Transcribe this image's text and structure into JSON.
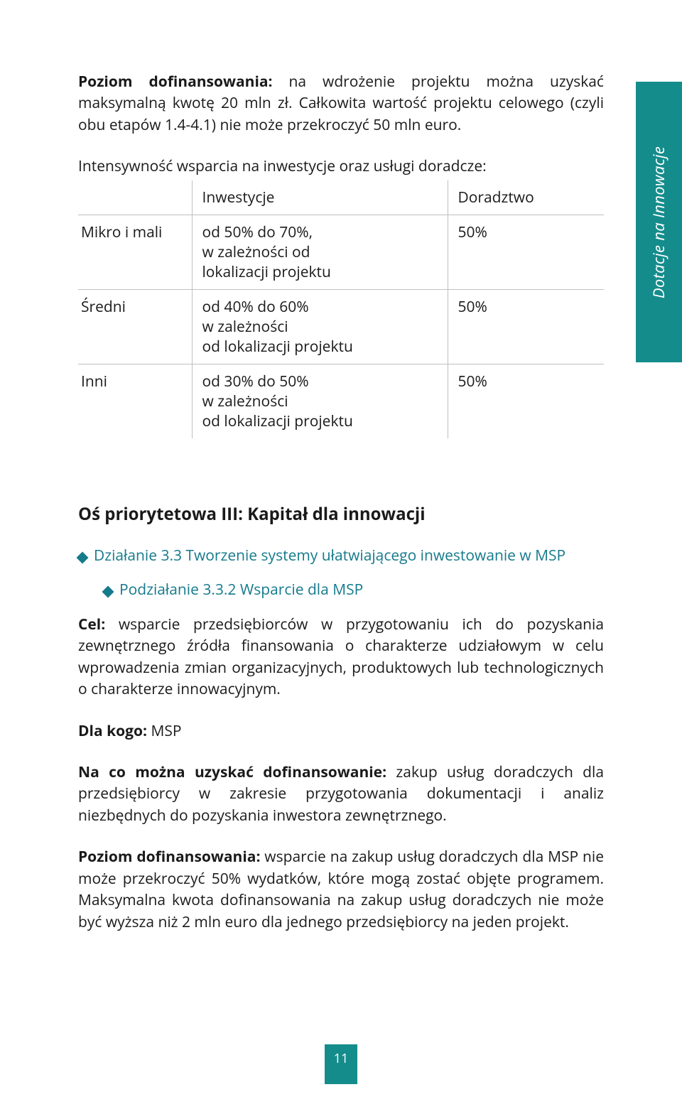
{
  "colors": {
    "teal": "#158c8c",
    "link": "#157a8c",
    "text": "#1a1a1a",
    "border": "#bfbfbf"
  },
  "sideTab": "Dotacje na Innowacje",
  "intro": {
    "boldLead": "Poziom dofinansowania:",
    "rest": " na wdrożenie projektu można uzyskać maksymalną kwotę 20 mln zł. Całkowita wartość projektu celowego (czyli obu etapów 1.4-4.1) nie może przekroczyć 50 mln euro."
  },
  "tableIntro": "Intensywność wsparcia na inwestycje oraz usługi doradcze:",
  "table": {
    "header": {
      "c1": "",
      "c2": "Inwestycje",
      "c3": "Doradztwo"
    },
    "rows": [
      {
        "c1": "Mikro i mali",
        "c2": "od 50% do 70%,\nw zależności od\nlokalizacji projektu",
        "c3": "50%"
      },
      {
        "c1": "Średni",
        "c2": "od 40% do 60%\nw zależności\nod lokalizacji projektu",
        "c3": "50%"
      },
      {
        "c1": "Inni",
        "c2": "od 30% do 50%\nw zależności\nod lokalizacji projektu",
        "c3": "50%"
      }
    ]
  },
  "sectionTitle": "Oś priorytetowa III: Kapitał dla innowacji",
  "bullet1": "Działanie 3.3 Tworzenie systemy ułatwiającego inwestowanie w MSP",
  "bullet2": "Podziałanie 3.3.2 Wsparcie dla MSP",
  "p_cel": {
    "bold": "Cel:",
    "rest": " wsparcie przedsiębiorców w przygotowaniu ich do pozyskania zewnętrznego źródła finansowania o charakterze udziałowym w celu wprowadzenia zmian organizacyjnych, produktowych lub technologicznych o charakterze innowacyjnym."
  },
  "p_dlakogo": {
    "bold": "Dla kogo:",
    "rest": " MSP"
  },
  "p_naco": {
    "bold": "Na co można uzyskać dofinansowanie:",
    "rest": " zakup usług doradczych dla przedsiębiorcy w zakresie przygotowania dokumentacji i analiz niezbędnych do pozyskania inwestora zewnętrznego."
  },
  "p_poziom": {
    "bold": "Poziom dofinansowania:",
    "rest": " wsparcie na zakup usług doradczych dla MSP nie może przekroczyć 50% wydatków, które mogą zostać objęte programem. Maksymalna kwota dofinansowania na zakup usług doradczych nie może być wyższa niż 2 mln euro dla jednego przedsiębiorcy na jeden projekt."
  },
  "pageNumber": "11"
}
